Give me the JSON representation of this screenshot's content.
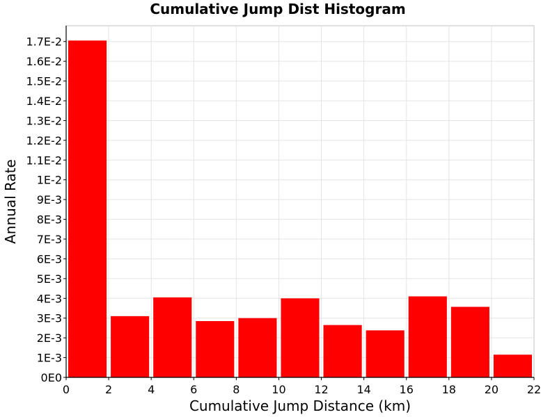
{
  "chart_data": {
    "type": "bar",
    "title": "Cumulative Jump Dist Histogram",
    "xlabel": "Cumulative Jump Distance (km)",
    "ylabel": "Annual Rate",
    "xlim": [
      0,
      22
    ],
    "ylim": [
      0,
      0.0178
    ],
    "grid": true,
    "bar_color": "#ff0000",
    "bars": [
      {
        "x_start": 0,
        "x_end": 2,
        "value": 0.01705
      },
      {
        "x_start": 2,
        "x_end": 4,
        "value": 0.0031
      },
      {
        "x_start": 4,
        "x_end": 6,
        "value": 0.00405
      },
      {
        "x_start": 6,
        "x_end": 8,
        "value": 0.00285
      },
      {
        "x_start": 8,
        "x_end": 10,
        "value": 0.003
      },
      {
        "x_start": 10,
        "x_end": 12,
        "value": 0.004
      },
      {
        "x_start": 12,
        "x_end": 14,
        "value": 0.00265
      },
      {
        "x_start": 14,
        "x_end": 16,
        "value": 0.00238
      },
      {
        "x_start": 16,
        "x_end": 18,
        "value": 0.0041
      },
      {
        "x_start": 18,
        "x_end": 20,
        "value": 0.00357
      },
      {
        "x_start": 20,
        "x_end": 22,
        "value": 0.00115
      }
    ],
    "x_ticks": [
      {
        "value": 0,
        "label": "0"
      },
      {
        "value": 2,
        "label": "2"
      },
      {
        "value": 4,
        "label": "4"
      },
      {
        "value": 6,
        "label": "6"
      },
      {
        "value": 8,
        "label": "8"
      },
      {
        "value": 10,
        "label": "10"
      },
      {
        "value": 12,
        "label": "12"
      },
      {
        "value": 14,
        "label": "14"
      },
      {
        "value": 16,
        "label": "16"
      },
      {
        "value": 18,
        "label": "18"
      },
      {
        "value": 20,
        "label": "20"
      },
      {
        "value": 22,
        "label": "22"
      }
    ],
    "y_ticks": [
      {
        "value": 0,
        "label": "0E0"
      },
      {
        "value": 0.001,
        "label": "1E-3"
      },
      {
        "value": 0.002,
        "label": "2E-3"
      },
      {
        "value": 0.003,
        "label": "3E-3"
      },
      {
        "value": 0.004,
        "label": "4E-3"
      },
      {
        "value": 0.005,
        "label": "5E-3"
      },
      {
        "value": 0.006,
        "label": "6E-3"
      },
      {
        "value": 0.007,
        "label": "7E-3"
      },
      {
        "value": 0.008,
        "label": "8E-3"
      },
      {
        "value": 0.009,
        "label": "9E-3"
      },
      {
        "value": 0.01,
        "label": "1E-2"
      },
      {
        "value": 0.011,
        "label": "1.1E-2"
      },
      {
        "value": 0.012,
        "label": "1.2E-2"
      },
      {
        "value": 0.013,
        "label": "1.3E-2"
      },
      {
        "value": 0.014,
        "label": "1.4E-2"
      },
      {
        "value": 0.015,
        "label": "1.5E-2"
      },
      {
        "value": 0.016,
        "label": "1.6E-2"
      },
      {
        "value": 0.017,
        "label": "1.7E-2"
      }
    ]
  }
}
